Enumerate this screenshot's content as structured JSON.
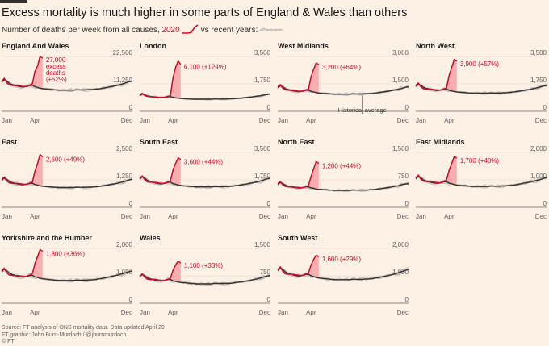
{
  "header": {
    "title": "Excess mortality is much higher in some parts of England & Wales than others",
    "subtitle_prefix": "Number of deaths per week from all causes,",
    "subtitle_year": "2020",
    "subtitle_suffix": "vs recent years:"
  },
  "footer": {
    "source": "Source: FT analysis of ONS mortality data. Data updated April 29",
    "credit": "FT graphic: John Burn-Murdoch / @jburnmurdoch",
    "copyright": "© FT"
  },
  "colors": {
    "current": "#cc0a2a",
    "average": "#33302e",
    "history": "#bfb9b3",
    "excess_fill": "#f5a3a3",
    "background": "#fdf1e6"
  },
  "chart_data": [
    {
      "type": "line",
      "title": "England And Wales",
      "x_ticks": [
        "Jan",
        "Apr",
        "Dec"
      ],
      "y_ticks": [
        "22,500",
        "11,250",
        "0"
      ],
      "ylim": [
        0,
        22500
      ],
      "average_weekly": [
        12000,
        13000,
        12400,
        11500,
        11000,
        10700,
        10400,
        10200,
        10000,
        10100,
        10300,
        10600,
        10700,
        10100,
        9800,
        9500,
        9300,
        9200,
        9100,
        9000,
        8900,
        8800,
        8700,
        8700,
        8700,
        8700,
        8700,
        8700,
        8700,
        8800,
        8800,
        8800,
        8800,
        8800,
        8900,
        8900,
        9000,
        9100,
        9200,
        9400,
        9600,
        9800,
        10000,
        10200,
        10400,
        10600,
        10900,
        11200,
        11500,
        11900,
        12200,
        12400
      ],
      "current_weekly": [
        12300,
        13500,
        11700,
        10800,
        10700,
        10600,
        10600,
        10500,
        10200,
        10100,
        10300,
        10700,
        11300,
        16400,
        18500,
        22500,
        21800
      ],
      "excess_label": "27,000",
      "excess_note": "excess deaths",
      "excess_pct": "(+52%)"
    },
    {
      "type": "line",
      "title": "London",
      "x_ticks": [
        "Jan",
        "Apr",
        "Dec"
      ],
      "y_ticks": [
        "3,500",
        "1,750",
        "0"
      ],
      "ylim": [
        0,
        3500
      ],
      "average_weekly": [
        1000,
        1100,
        1050,
        980,
        950,
        930,
        910,
        890,
        880,
        890,
        900,
        930,
        940,
        890,
        860,
        840,
        820,
        810,
        800,
        790,
        780,
        770,
        770,
        770,
        770,
        770,
        770,
        770,
        770,
        780,
        780,
        780,
        780,
        780,
        790,
        790,
        800,
        810,
        820,
        830,
        850,
        870,
        890,
        900,
        920,
        940,
        970,
        990,
        1020,
        1050,
        1080,
        1100
      ],
      "current_weekly": [
        1050,
        1150,
        1000,
        950,
        930,
        920,
        910,
        900,
        880,
        870,
        900,
        950,
        1000,
        2150,
        2800,
        3200,
        3000
      ],
      "excess_label": "6,100",
      "excess_pct": "(+124%)"
    },
    {
      "type": "line",
      "title": "West Midlands",
      "x_ticks": [
        "Jan",
        "Apr",
        "Dec"
      ],
      "y_ticks": [
        "3,000",
        "1,500",
        "0"
      ],
      "ylim": [
        0,
        3000
      ],
      "average_weekly": [
        1300,
        1400,
        1340,
        1240,
        1190,
        1160,
        1120,
        1100,
        1080,
        1090,
        1110,
        1150,
        1160,
        1090,
        1060,
        1030,
        1000,
        990,
        980,
        970,
        960,
        950,
        940,
        940,
        940,
        940,
        940,
        940,
        940,
        950,
        950,
        950,
        950,
        950,
        960,
        960,
        970,
        980,
        1000,
        1020,
        1040,
        1060,
        1080,
        1100,
        1120,
        1150,
        1180,
        1210,
        1240,
        1280,
        1320,
        1340
      ],
      "current_weekly": [
        1350,
        1450,
        1260,
        1170,
        1160,
        1150,
        1150,
        1130,
        1100,
        1090,
        1110,
        1160,
        1220,
        1900,
        2300,
        2650,
        2550
      ],
      "excess_label": "3,200",
      "excess_pct": "(+64%)",
      "avg_note": "Historical average"
    },
    {
      "type": "line",
      "title": "North West",
      "x_ticks": [
        "Jan",
        "Apr",
        "Dec"
      ],
      "y_ticks": [
        "3,500",
        "1,750",
        "0"
      ],
      "ylim": [
        0,
        3500
      ],
      "average_weekly": [
        1600,
        1730,
        1650,
        1530,
        1470,
        1430,
        1380,
        1360,
        1330,
        1340,
        1370,
        1410,
        1430,
        1340,
        1300,
        1260,
        1230,
        1220,
        1210,
        1200,
        1180,
        1170,
        1160,
        1160,
        1160,
        1160,
        1160,
        1160,
        1160,
        1170,
        1170,
        1170,
        1170,
        1170,
        1180,
        1180,
        1200,
        1210,
        1230,
        1250,
        1280,
        1300,
        1330,
        1360,
        1380,
        1410,
        1450,
        1490,
        1530,
        1580,
        1620,
        1650
      ],
      "current_weekly": [
        1650,
        1800,
        1560,
        1440,
        1430,
        1420,
        1410,
        1390,
        1360,
        1340,
        1370,
        1430,
        1500,
        2300,
        2800,
        3300,
        3200
      ],
      "excess_label": "3,900",
      "excess_pct": "(+57%)"
    },
    {
      "type": "line",
      "title": "East",
      "x_ticks": [
        "Jan",
        "Apr",
        "Dec"
      ],
      "y_ticks": [
        "2,500",
        "1,250",
        "0"
      ],
      "ylim": [
        0,
        2500
      ],
      "average_weekly": [
        1230,
        1330,
        1270,
        1180,
        1130,
        1100,
        1070,
        1050,
        1030,
        1040,
        1060,
        1090,
        1100,
        1040,
        1010,
        980,
        960,
        950,
        940,
        930,
        920,
        910,
        900,
        900,
        900,
        900,
        900,
        900,
        900,
        910,
        910,
        910,
        910,
        910,
        920,
        920,
        930,
        940,
        950,
        970,
        990,
        1010,
        1030,
        1050,
        1070,
        1090,
        1120,
        1150,
        1180,
        1220,
        1260,
        1280
      ],
      "current_weekly": [
        1270,
        1380,
        1200,
        1110,
        1100,
        1090,
        1090,
        1080,
        1050,
        1040,
        1060,
        1100,
        1150,
        1650,
        2000,
        2400,
        2300
      ],
      "excess_label": "2,600",
      "excess_pct": "(+49%)"
    },
    {
      "type": "line",
      "title": "South East",
      "x_ticks": [
        "Jan",
        "Apr",
        "Dec"
      ],
      "y_ticks": [
        "3,500",
        "1,750",
        "0"
      ],
      "ylim": [
        0,
        3500
      ],
      "average_weekly": [
        1800,
        1950,
        1860,
        1720,
        1650,
        1610,
        1560,
        1530,
        1500,
        1510,
        1540,
        1590,
        1610,
        1510,
        1470,
        1420,
        1390,
        1370,
        1360,
        1350,
        1330,
        1320,
        1300,
        1300,
        1300,
        1300,
        1300,
        1300,
        1300,
        1320,
        1320,
        1320,
        1320,
        1320,
        1330,
        1330,
        1350,
        1370,
        1390,
        1410,
        1440,
        1470,
        1500,
        1530,
        1560,
        1590,
        1630,
        1680,
        1720,
        1780,
        1830,
        1860
      ],
      "current_weekly": [
        1850,
        2000,
        1750,
        1620,
        1610,
        1600,
        1590,
        1570,
        1530,
        1520,
        1550,
        1610,
        1700,
        2400,
        2800,
        3150,
        3050
      ],
      "excess_label": "3,600",
      "excess_pct": "(+44%)"
    },
    {
      "type": "line",
      "title": "North East",
      "x_ticks": [
        "Jan",
        "Apr",
        "Dec"
      ],
      "y_ticks": [
        "1,500",
        "750",
        "0"
      ],
      "ylim": [
        0,
        1500
      ],
      "average_weekly": [
        630,
        680,
        650,
        600,
        580,
        560,
        550,
        540,
        530,
        530,
        540,
        560,
        560,
        530,
        520,
        500,
        490,
        490,
        480,
        480,
        470,
        470,
        460,
        460,
        460,
        460,
        460,
        460,
        460,
        470,
        470,
        470,
        470,
        470,
        470,
        470,
        480,
        480,
        490,
        500,
        510,
        520,
        530,
        540,
        550,
        560,
        580,
        590,
        610,
        630,
        640,
        650
      ],
      "current_weekly": [
        650,
        700,
        610,
        570,
        560,
        560,
        560,
        550,
        540,
        530,
        540,
        560,
        600,
        850,
        1050,
        1250,
        1200
      ],
      "excess_label": "1,200",
      "excess_pct": "(+44%)"
    },
    {
      "type": "line",
      "title": "East Midlands",
      "x_ticks": [
        "Jan",
        "Apr",
        "Dec"
      ],
      "y_ticks": [
        "2,000",
        "1,000",
        "0"
      ],
      "ylim": [
        0,
        2000
      ],
      "average_weekly": [
        1050,
        1130,
        1080,
        1000,
        960,
        940,
        910,
        890,
        880,
        880,
        900,
        930,
        940,
        880,
        860,
        830,
        810,
        800,
        790,
        790,
        780,
        770,
        760,
        760,
        760,
        760,
        760,
        760,
        760,
        770,
        770,
        770,
        770,
        770,
        780,
        780,
        790,
        800,
        810,
        820,
        840,
        860,
        880,
        890,
        910,
        930,
        950,
        980,
        1000,
        1030,
        1060,
        1080
      ],
      "current_weekly": [
        1080,
        1170,
        1020,
        950,
        940,
        930,
        930,
        920,
        900,
        890,
        910,
        950,
        1000,
        1350,
        1600,
        1850,
        1800
      ],
      "excess_label": "1,700",
      "excess_pct": "(+40%)"
    },
    {
      "type": "line",
      "title": "Yorkshire and the Humber",
      "x_ticks": [
        "Jan",
        "Apr",
        "Dec"
      ],
      "y_ticks": [
        "2,000",
        "1,000",
        "0"
      ],
      "ylim": [
        0,
        2000
      ],
      "average_weekly": [
        1150,
        1240,
        1180,
        1100,
        1050,
        1020,
        990,
        970,
        960,
        960,
        980,
        1010,
        1020,
        960,
        940,
        910,
        890,
        880,
        870,
        860,
        850,
        840,
        830,
        830,
        830,
        830,
        830,
        830,
        830,
        840,
        840,
        840,
        840,
        840,
        850,
        850,
        860,
        870,
        890,
        900,
        920,
        940,
        960,
        980,
        1000,
        1020,
        1050,
        1070,
        1100,
        1130,
        1160,
        1180
      ],
      "current_weekly": [
        1180,
        1280,
        1110,
        1030,
        1020,
        1010,
        1010,
        1000,
        980,
        970,
        990,
        1030,
        1080,
        1450,
        1700,
        1950,
        1900
      ],
      "excess_label": "1,800",
      "excess_pct": "(+36%)"
    },
    {
      "type": "line",
      "title": "Wales",
      "x_ticks": [
        "Jan",
        "Apr",
        "Dec"
      ],
      "y_ticks": [
        "1,500",
        "750",
        "0"
      ],
      "ylim": [
        0,
        1500
      ],
      "average_weekly": [
        730,
        790,
        750,
        700,
        670,
        650,
        630,
        620,
        610,
        610,
        620,
        650,
        650,
        610,
        600,
        580,
        570,
        560,
        560,
        550,
        540,
        540,
        530,
        530,
        530,
        530,
        530,
        530,
        530,
        540,
        540,
        540,
        540,
        540,
        540,
        540,
        550,
        560,
        570,
        580,
        590,
        600,
        610,
        620,
        640,
        650,
        670,
        690,
        710,
        730,
        750,
        760
      ],
      "current_weekly": [
        740,
        800,
        710,
        660,
        650,
        650,
        650,
        640,
        620,
        620,
        630,
        650,
        690,
        900,
        1050,
        1150,
        1100
      ],
      "excess_label": "1,100",
      "excess_pct": "(+33%)"
    },
    {
      "type": "line",
      "title": "South West",
      "x_ticks": [
        "Jan",
        "Apr",
        "Dec"
      ],
      "y_ticks": [
        "2,000",
        "1,000",
        "0"
      ],
      "ylim": [
        0,
        2000
      ],
      "average_weekly": [
        1200,
        1290,
        1230,
        1140,
        1090,
        1070,
        1030,
        1010,
        990,
        1000,
        1020,
        1050,
        1060,
        1000,
        970,
        940,
        920,
        910,
        900,
        890,
        880,
        870,
        860,
        860,
        860,
        860,
        860,
        860,
        860,
        870,
        870,
        870,
        870,
        870,
        880,
        880,
        890,
        900,
        920,
        930,
        950,
        970,
        990,
        1010,
        1030,
        1050,
        1080,
        1110,
        1140,
        1170,
        1210,
        1230
      ],
      "current_weekly": [
        1230,
        1320,
        1160,
        1070,
        1060,
        1060,
        1050,
        1040,
        1020,
        1010,
        1030,
        1070,
        1110,
        1400,
        1600,
        1750,
        1700
      ],
      "excess_label": "1,600",
      "excess_pct": "(+29%)"
    }
  ]
}
